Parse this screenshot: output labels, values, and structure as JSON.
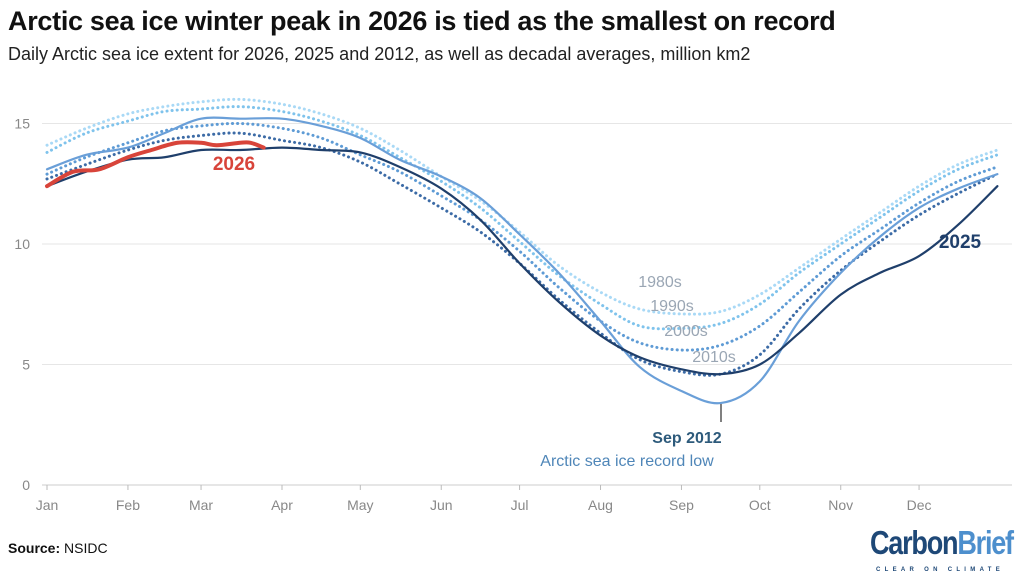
{
  "chart_data": {
    "type": "line",
    "title": "Arctic sea ice winter peak in 2026 is tied as the smallest on record",
    "subtitle": "Daily Arctic sea ice extent for 2026, 2025 and 2012, as well as decadal averages, million km2",
    "xlabel": "",
    "ylabel": "",
    "ylim": [
      0,
      17
    ],
    "yticks": [
      0,
      5,
      10,
      15
    ],
    "xticks": [
      "Jan",
      "Feb",
      "Mar",
      "Apr",
      "May",
      "Jun",
      "Jul",
      "Aug",
      "Sep",
      "Oct",
      "Nov",
      "Dec"
    ],
    "grid": true,
    "x_day_of_year": [
      0,
      15,
      31,
      45,
      59,
      74,
      90,
      105,
      120,
      135,
      151,
      166,
      181,
      196,
      212,
      227,
      243,
      258,
      273,
      288,
      304,
      319,
      334,
      349,
      364
    ],
    "series": [
      {
        "name": "1980s",
        "style": "dotted",
        "color": "#a9d9f6",
        "values": [
          14.1,
          14.8,
          15.4,
          15.7,
          15.9,
          16.0,
          15.8,
          15.4,
          14.8,
          13.9,
          12.8,
          11.8,
          10.5,
          9.1,
          8.0,
          7.3,
          7.1,
          7.2,
          7.9,
          9.0,
          10.2,
          11.3,
          12.4,
          13.3,
          13.9
        ]
      },
      {
        "name": "1990s",
        "style": "dotted",
        "color": "#7fc3ec",
        "values": [
          13.8,
          14.6,
          15.1,
          15.5,
          15.6,
          15.7,
          15.5,
          15.1,
          14.5,
          13.6,
          12.6,
          11.5,
          10.1,
          8.7,
          7.5,
          6.6,
          6.5,
          6.7,
          7.5,
          8.8,
          10.0,
          11.1,
          12.2,
          13.1,
          13.7
        ]
      },
      {
        "name": "2000s",
        "style": "dotted",
        "color": "#5e9bd5",
        "values": [
          12.9,
          13.6,
          14.2,
          14.7,
          14.9,
          15.0,
          14.8,
          14.4,
          13.7,
          13.0,
          12.0,
          11.0,
          9.7,
          8.2,
          6.8,
          5.9,
          5.6,
          5.8,
          6.6,
          8.0,
          9.5,
          10.6,
          11.7,
          12.6,
          13.2
        ]
      },
      {
        "name": "2010s",
        "style": "dotted",
        "color": "#3c6ba6",
        "values": [
          12.7,
          13.3,
          13.9,
          14.3,
          14.5,
          14.6,
          14.3,
          14.0,
          13.4,
          12.5,
          11.5,
          10.5,
          9.2,
          7.7,
          6.3,
          5.2,
          4.7,
          4.6,
          5.4,
          7.3,
          8.9,
          10.1,
          11.2,
          12.1,
          12.9
        ]
      },
      {
        "name": "2012",
        "style": "solid",
        "color": "#6a9fd8",
        "values": [
          13.1,
          13.7,
          14.0,
          14.6,
          15.2,
          15.2,
          15.2,
          14.9,
          14.4,
          13.5,
          12.8,
          11.9,
          10.4,
          8.8,
          6.8,
          4.9,
          3.9,
          3.4,
          4.3,
          6.8,
          8.8,
          10.3,
          11.5,
          12.3,
          12.9
        ]
      },
      {
        "name": "2025",
        "style": "solid",
        "color": "#1f3f6b",
        "values": [
          12.4,
          13.0,
          13.5,
          13.6,
          13.9,
          13.9,
          14.0,
          13.9,
          13.8,
          13.2,
          12.3,
          11.0,
          9.2,
          7.6,
          6.2,
          5.3,
          4.8,
          4.6,
          5.0,
          6.3,
          7.9,
          8.8,
          9.5,
          10.8,
          12.4
        ]
      },
      {
        "name": "2026",
        "style": "solid",
        "color": "#d8443a",
        "x_day_of_year": [
          0,
          10,
          20,
          31,
          40,
          50,
          59,
          65,
          74,
          78,
          83
        ],
        "values": [
          12.4,
          13.0,
          13.1,
          13.6,
          13.9,
          14.2,
          14.2,
          14.1,
          14.2,
          14.2,
          14.0
        ]
      }
    ],
    "annotations": {
      "sep2012_title": "Sep 2012",
      "sep2012_text": "Arctic sea ice record low",
      "label_2026": "2026",
      "label_2025": "2025"
    }
  },
  "source_label": "Source:",
  "source_value": "NSIDC",
  "logo": {
    "part1": "Carbon",
    "part2": "Brief",
    "tagline": "CLEAR ON CLIMATE"
  }
}
